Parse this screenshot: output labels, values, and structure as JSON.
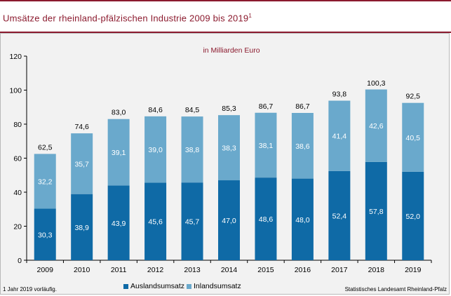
{
  "title": "Umsätze der rheinland-pfälzischen Industrie 2009 bis 2019",
  "title_footnote_mark": "1",
  "footnote": "1 Jahr 2019 vorläufig.",
  "source": "Statistisches Landesamt Rheinland-Pfalz",
  "colors": {
    "accent": "#8b1a2e",
    "auslands": "#0f6aa6",
    "inlands": "#6aa9cc",
    "panel": "#f2f2f2"
  },
  "chart_data": {
    "type": "bar",
    "stacked": true,
    "subtitle": "in Milliarden Euro",
    "categories": [
      "2009",
      "2010",
      "2011",
      "2012",
      "2013",
      "2014",
      "2015",
      "2016",
      "2017",
      "2018",
      "2019"
    ],
    "series": [
      {
        "name": "Auslandsumsatz",
        "values": [
          30.3,
          38.9,
          43.9,
          45.6,
          45.7,
          47.0,
          48.6,
          48.0,
          52.4,
          57.8,
          52.0
        ],
        "labels": [
          "30,3",
          "38,9",
          "43,9",
          "45,6",
          "45,7",
          "47,0",
          "48,6",
          "48,0",
          "52,4",
          "57,8",
          "52,0"
        ]
      },
      {
        "name": "Inlandsumsatz",
        "values": [
          32.2,
          35.7,
          39.1,
          39.0,
          38.8,
          38.3,
          38.1,
          38.6,
          41.4,
          42.6,
          40.5
        ],
        "labels": [
          "32,2",
          "35,7",
          "39,1",
          "39,0",
          "38,8",
          "38,3",
          "38,1",
          "38,6",
          "41,4",
          "42,6",
          "40,5"
        ]
      }
    ],
    "totals": [
      62.5,
      74.6,
      83.0,
      84.6,
      84.5,
      85.3,
      86.7,
      86.7,
      93.8,
      100.3,
      92.5
    ],
    "total_labels": [
      "62,5",
      "74,6",
      "83,0",
      "84,6",
      "84,5",
      "85,3",
      "86,7",
      "86,7",
      "93,8",
      "100,3",
      "92,5"
    ],
    "ylim": [
      0,
      120
    ],
    "yticks": [
      "0",
      "20",
      "40",
      "60",
      "80",
      "100",
      "120"
    ],
    "grid": false,
    "legend_position": "bottom"
  }
}
